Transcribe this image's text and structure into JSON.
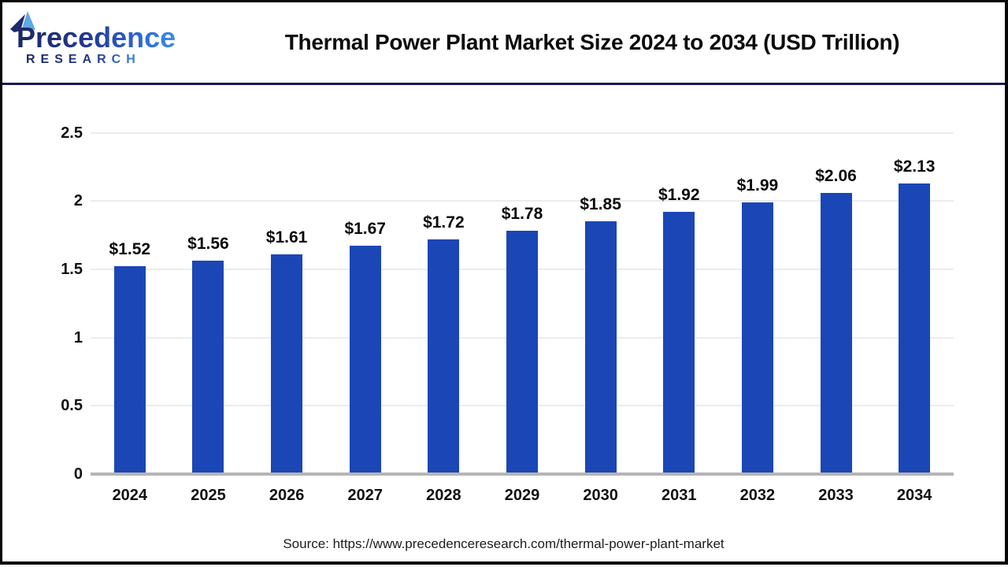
{
  "header": {
    "logo": {
      "line1": "Precedence",
      "line2": "RESEARCH"
    },
    "title": "Thermal Power Plant Market Size 2024 to 2034 (USD Trillion)"
  },
  "chart_data": {
    "type": "bar",
    "title": "Thermal Power Plant Market Size 2024 to 2034 (USD Trillion)",
    "categories": [
      "2024",
      "2025",
      "2026",
      "2027",
      "2028",
      "2029",
      "2030",
      "2031",
      "2032",
      "2033",
      "2034"
    ],
    "values": [
      1.52,
      1.56,
      1.61,
      1.67,
      1.72,
      1.78,
      1.85,
      1.92,
      1.99,
      2.06,
      2.13
    ],
    "labels": [
      "$1.52",
      "$1.56",
      "$1.61",
      "$1.67",
      "$1.72",
      "$1.78",
      "$1.85",
      "$1.92",
      "$1.99",
      "$2.06",
      "$2.13"
    ],
    "xlabel": "",
    "ylabel": "",
    "ylim": [
      0,
      2.5
    ],
    "yticks": [
      0,
      0.5,
      1,
      1.5,
      2,
      2.5
    ],
    "ytick_labels": [
      "0",
      "0.5",
      "1",
      "1.5",
      "2",
      "2.5"
    ],
    "grid": true,
    "legend": "none",
    "bar_color": "#1b46b5"
  },
  "footer": {
    "source": "Source: https://www.precedenceresearch.com/thermal-power-plant-market"
  },
  "colors": {
    "divider_navy": "#171d4f",
    "frame_black": "#060606",
    "gridline": "#ececec",
    "axis_gray": "#b5b5b5",
    "logo_navy": "#1c2766",
    "logo_blue": "#3f8ce6"
  }
}
